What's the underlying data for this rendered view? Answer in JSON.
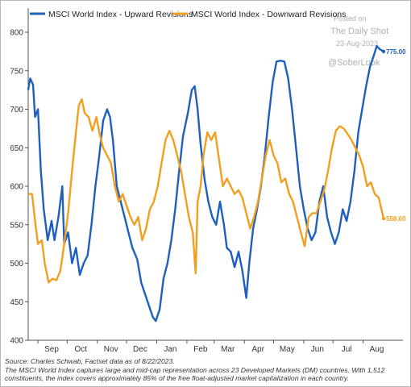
{
  "chart_data": {
    "type": "line",
    "title": "",
    "xlabel": "",
    "ylabel": "",
    "ylim": [
      400,
      800
    ],
    "yticks": [
      400,
      450,
      500,
      550,
      600,
      650,
      700,
      750,
      800
    ],
    "x_months": [
      "Sep",
      "Oct",
      "Nov",
      "Dec",
      "Jan",
      "Feb",
      "Mar",
      "Apr",
      "May",
      "Jun",
      "Jul",
      "Aug"
    ],
    "x_start": "2022-08-22",
    "x_end": "2023-08-22",
    "grid": false,
    "legend_position": "top-left",
    "series": [
      {
        "name": "MSCI World Index - Upward Revisions",
        "color": "#1f5fbf",
        "end_label": "775.00",
        "points": [
          [
            "2022-08-22",
            725
          ],
          [
            "2022-08-24",
            740
          ],
          [
            "2022-08-27",
            732
          ],
          [
            "2022-08-29",
            690
          ],
          [
            "2022-09-01",
            700
          ],
          [
            "2022-09-04",
            620
          ],
          [
            "2022-09-07",
            570
          ],
          [
            "2022-09-11",
            530
          ],
          [
            "2022-09-15",
            555
          ],
          [
            "2022-09-18",
            530
          ],
          [
            "2022-09-22",
            560
          ],
          [
            "2022-09-26",
            600
          ],
          [
            "2022-09-28",
            525
          ],
          [
            "2022-10-02",
            540
          ],
          [
            "2022-10-06",
            500
          ],
          [
            "2022-10-10",
            520
          ],
          [
            "2022-10-14",
            485
          ],
          [
            "2022-10-18",
            500
          ],
          [
            "2022-10-22",
            510
          ],
          [
            "2022-10-26",
            550
          ],
          [
            "2022-10-30",
            600
          ],
          [
            "2022-11-03",
            640
          ],
          [
            "2022-11-07",
            685
          ],
          [
            "2022-11-11",
            700
          ],
          [
            "2022-11-14",
            690
          ],
          [
            "2022-11-17",
            660
          ],
          [
            "2022-11-21",
            600
          ],
          [
            "2022-11-25",
            580
          ],
          [
            "2022-11-29",
            560
          ],
          [
            "2022-12-03",
            540
          ],
          [
            "2022-12-07",
            520
          ],
          [
            "2022-12-12",
            505
          ],
          [
            "2022-12-16",
            475
          ],
          [
            "2022-12-20",
            460
          ],
          [
            "2022-12-24",
            445
          ],
          [
            "2022-12-28",
            430
          ],
          [
            "2022-12-31",
            425
          ],
          [
            "2023-01-04",
            440
          ],
          [
            "2023-01-08",
            480
          ],
          [
            "2023-01-12",
            500
          ],
          [
            "2023-01-16",
            530
          ],
          [
            "2023-01-20",
            570
          ],
          [
            "2023-01-24",
            620
          ],
          [
            "2023-01-28",
            665
          ],
          [
            "2023-02-02",
            695
          ],
          [
            "2023-02-06",
            725
          ],
          [
            "2023-02-09",
            730
          ],
          [
            "2023-02-12",
            700
          ],
          [
            "2023-02-15",
            655
          ],
          [
            "2023-02-19",
            610
          ],
          [
            "2023-02-23",
            580
          ],
          [
            "2023-02-27",
            560
          ],
          [
            "2023-03-03",
            550
          ],
          [
            "2023-03-07",
            580
          ],
          [
            "2023-03-11",
            550
          ],
          [
            "2023-03-14",
            520
          ],
          [
            "2023-03-18",
            515
          ],
          [
            "2023-03-22",
            495
          ],
          [
            "2023-03-26",
            515
          ],
          [
            "2023-03-30",
            490
          ],
          [
            "2023-04-03",
            455
          ],
          [
            "2023-04-06",
            500
          ],
          [
            "2023-04-10",
            545
          ],
          [
            "2023-04-14",
            570
          ],
          [
            "2023-04-18",
            600
          ],
          [
            "2023-04-22",
            640
          ],
          [
            "2023-04-26",
            690
          ],
          [
            "2023-04-30",
            735
          ],
          [
            "2023-05-04",
            762
          ],
          [
            "2023-05-08",
            763
          ],
          [
            "2023-05-12",
            762
          ],
          [
            "2023-05-16",
            740
          ],
          [
            "2023-05-20",
            700
          ],
          [
            "2023-05-24",
            650
          ],
          [
            "2023-05-28",
            600
          ],
          [
            "2023-06-01",
            570
          ],
          [
            "2023-06-05",
            545
          ],
          [
            "2023-06-09",
            530
          ],
          [
            "2023-06-13",
            540
          ],
          [
            "2023-06-17",
            580
          ],
          [
            "2023-06-21",
            600
          ],
          [
            "2023-06-25",
            560
          ],
          [
            "2023-06-29",
            540
          ],
          [
            "2023-07-03",
            525
          ],
          [
            "2023-07-07",
            540
          ],
          [
            "2023-07-11",
            570
          ],
          [
            "2023-07-15",
            555
          ],
          [
            "2023-07-19",
            580
          ],
          [
            "2023-07-23",
            620
          ],
          [
            "2023-07-27",
            670
          ],
          [
            "2023-07-31",
            700
          ],
          [
            "2023-08-04",
            730
          ],
          [
            "2023-08-08",
            755
          ],
          [
            "2023-08-12",
            770
          ],
          [
            "2023-08-15",
            782
          ],
          [
            "2023-08-18",
            778
          ],
          [
            "2023-08-22",
            775
          ]
        ]
      },
      {
        "name": "MSCI World Index - Downward Revisions",
        "color": "#f0a020",
        "end_label": "558.00",
        "points": [
          [
            "2022-08-22",
            590
          ],
          [
            "2022-08-26",
            590
          ],
          [
            "2022-08-29",
            555
          ],
          [
            "2022-09-01",
            525
          ],
          [
            "2022-09-05",
            530
          ],
          [
            "2022-09-08",
            500
          ],
          [
            "2022-09-12",
            475
          ],
          [
            "2022-09-16",
            480
          ],
          [
            "2022-09-20",
            478
          ],
          [
            "2022-09-24",
            490
          ],
          [
            "2022-09-28",
            525
          ],
          [
            "2022-10-02",
            565
          ],
          [
            "2022-10-06",
            620
          ],
          [
            "2022-10-10",
            670
          ],
          [
            "2022-10-13",
            705
          ],
          [
            "2022-10-16",
            713
          ],
          [
            "2022-10-19",
            695
          ],
          [
            "2022-10-23",
            690
          ],
          [
            "2022-10-27",
            672
          ],
          [
            "2022-10-31",
            690
          ],
          [
            "2022-11-03",
            670
          ],
          [
            "2022-11-07",
            650
          ],
          [
            "2022-11-11",
            640
          ],
          [
            "2022-11-15",
            630
          ],
          [
            "2022-11-19",
            600
          ],
          [
            "2022-11-23",
            580
          ],
          [
            "2022-11-27",
            590
          ],
          [
            "2022-12-01",
            575
          ],
          [
            "2022-12-05",
            560
          ],
          [
            "2022-12-09",
            550
          ],
          [
            "2022-12-13",
            560
          ],
          [
            "2022-12-17",
            530
          ],
          [
            "2022-12-21",
            545
          ],
          [
            "2022-12-25",
            570
          ],
          [
            "2022-12-29",
            580
          ],
          [
            "2023-01-02",
            600
          ],
          [
            "2023-01-06",
            630
          ],
          [
            "2023-01-10",
            660
          ],
          [
            "2023-01-14",
            672
          ],
          [
            "2023-01-18",
            660
          ],
          [
            "2023-01-22",
            640
          ],
          [
            "2023-01-26",
            620
          ],
          [
            "2023-01-30",
            590
          ],
          [
            "2023-02-03",
            560
          ],
          [
            "2023-02-07",
            540
          ],
          [
            "2023-02-10",
            487
          ],
          [
            "2023-02-12",
            580
          ],
          [
            "2023-02-15",
            600
          ],
          [
            "2023-02-18",
            640
          ],
          [
            "2023-02-22",
            670
          ],
          [
            "2023-02-26",
            660
          ],
          [
            "2023-03-02",
            670
          ],
          [
            "2023-03-06",
            635
          ],
          [
            "2023-03-10",
            600
          ],
          [
            "2023-03-14",
            610
          ],
          [
            "2023-03-18",
            600
          ],
          [
            "2023-03-22",
            590
          ],
          [
            "2023-03-26",
            595
          ],
          [
            "2023-03-30",
            585
          ],
          [
            "2023-04-03",
            565
          ],
          [
            "2023-04-07",
            545
          ],
          [
            "2023-04-11",
            560
          ],
          [
            "2023-04-15",
            580
          ],
          [
            "2023-04-19",
            610
          ],
          [
            "2023-04-23",
            640
          ],
          [
            "2023-04-27",
            660
          ],
          [
            "2023-05-01",
            640
          ],
          [
            "2023-05-05",
            630
          ],
          [
            "2023-05-09",
            605
          ],
          [
            "2023-05-13",
            610
          ],
          [
            "2023-05-17",
            590
          ],
          [
            "2023-05-21",
            580
          ],
          [
            "2023-05-25",
            560
          ],
          [
            "2023-05-29",
            540
          ],
          [
            "2023-06-02",
            522
          ],
          [
            "2023-06-06",
            560
          ],
          [
            "2023-06-10",
            565
          ],
          [
            "2023-06-14",
            565
          ],
          [
            "2023-06-18",
            580
          ],
          [
            "2023-06-22",
            595
          ],
          [
            "2023-06-26",
            620
          ],
          [
            "2023-06-30",
            650
          ],
          [
            "2023-07-04",
            672
          ],
          [
            "2023-07-08",
            678
          ],
          [
            "2023-07-12",
            675
          ],
          [
            "2023-07-16",
            668
          ],
          [
            "2023-07-20",
            660
          ],
          [
            "2023-07-24",
            650
          ],
          [
            "2023-07-28",
            640
          ],
          [
            "2023-08-01",
            625
          ],
          [
            "2023-08-05",
            600
          ],
          [
            "2023-08-09",
            605
          ],
          [
            "2023-08-13",
            590
          ],
          [
            "2023-08-17",
            585
          ],
          [
            "2023-08-22",
            558
          ]
        ]
      }
    ]
  },
  "watermark": {
    "posted_on": "Posted on",
    "site": "The Daily Shot",
    "date": "23-Aug-2023",
    "handle": "@SoberLook"
  },
  "footnotes": {
    "source": "Source: Charles Schwab, Factset data as of 8/22/2023.",
    "line1": "The MSCI World Index captures large and mid-cap representation across 23 Developed Markets (DM) countries. With 1,512",
    "line2": "constituents, the index covers approximately 85% of the free float-adjusted market capitalization in each country."
  }
}
